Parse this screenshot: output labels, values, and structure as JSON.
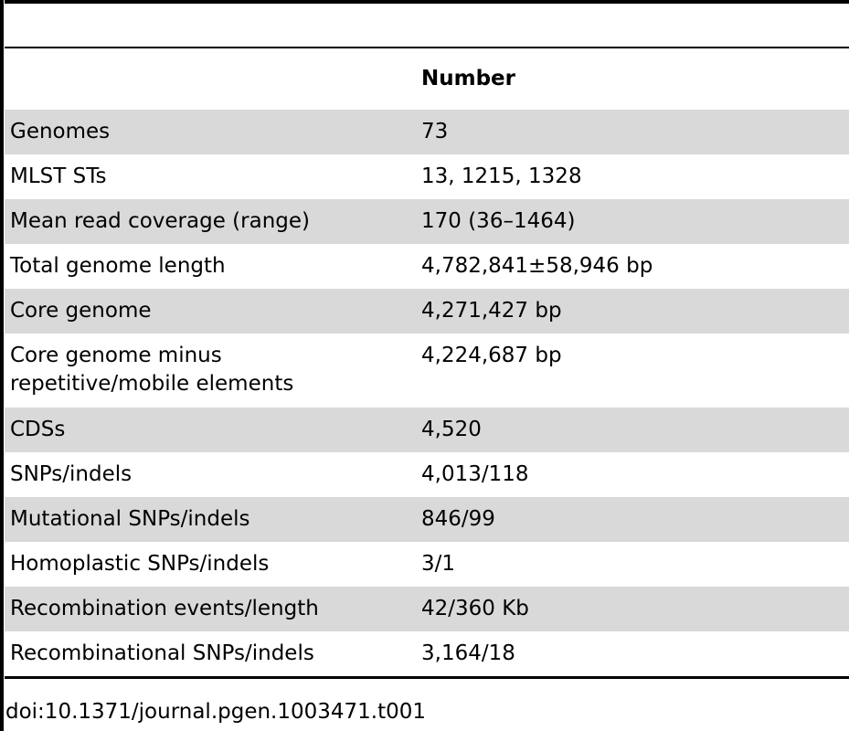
{
  "table": {
    "header": {
      "col1": "",
      "col2": "Number"
    },
    "rows": [
      {
        "label": "Genomes",
        "value": "73"
      },
      {
        "label": "MLST STs",
        "value": "13, 1215, 1328"
      },
      {
        "label": "Mean read coverage (range)",
        "value": "170 (36–1464)"
      },
      {
        "label": "Total genome length",
        "value": "4,782,841±58,946 bp"
      },
      {
        "label": "Core genome",
        "value": "4,271,427 bp"
      },
      {
        "label": "Core genome minus repetitive/mobile elements",
        "value": "4,224,687 bp"
      },
      {
        "label": "CDSs",
        "value": "4,520"
      },
      {
        "label": "SNPs/indels",
        "value": "4,013/118"
      },
      {
        "label": "Mutational SNPs/indels",
        "value": "846/99"
      },
      {
        "label": "Homoplastic SNPs/indels",
        "value": "3/1"
      },
      {
        "label": "Recombination events/length",
        "value": "42/360 Kb"
      },
      {
        "label": "Recombinational SNPs/indels",
        "value": "3,164/18"
      }
    ]
  },
  "footer": {
    "doi": "doi:10.1371/journal.pgen.1003471.t001"
  }
}
